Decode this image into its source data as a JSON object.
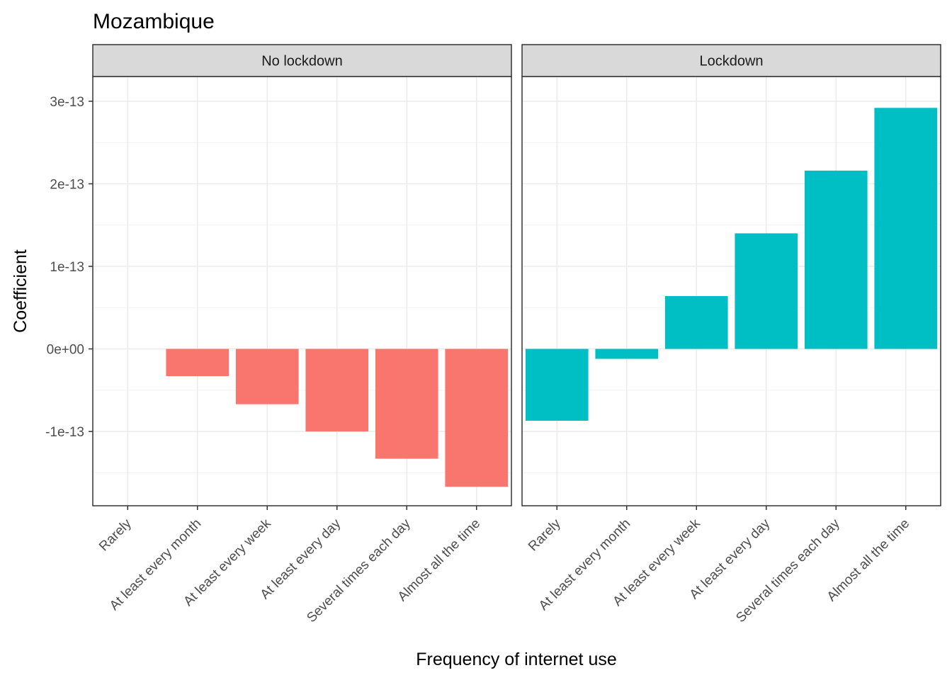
{
  "chart_data": {
    "type": "bar",
    "title": "Mozambique",
    "xlabel": "Frequency of internet use",
    "ylabel": "Coefficient",
    "categories": [
      "Rarely",
      "At least every month",
      "At least every week",
      "At least every day",
      "Several times each day",
      "Almost all the time"
    ],
    "y_ticks": [
      -1e-13,
      0,
      1e-13,
      2e-13,
      3e-13
    ],
    "y_tick_labels": [
      "-1e-13",
      "0e+00",
      "1e-13",
      "2e-13",
      "3e-13"
    ],
    "ylim": [
      -1.9e-13,
      3.3e-13
    ],
    "grid": true,
    "legend": "none",
    "panels": [
      {
        "name": "No lockdown",
        "color": "#F8766D",
        "values": [
          0,
          -3.3e-14,
          -6.7e-14,
          -1e-13,
          -1.33e-13,
          -1.67e-13
        ]
      },
      {
        "name": "Lockdown",
        "color": "#00BFC4",
        "values": [
          -8.7e-14,
          -1.2e-14,
          6.4e-14,
          1.4e-13,
          2.16e-13,
          2.92e-13
        ]
      }
    ]
  }
}
